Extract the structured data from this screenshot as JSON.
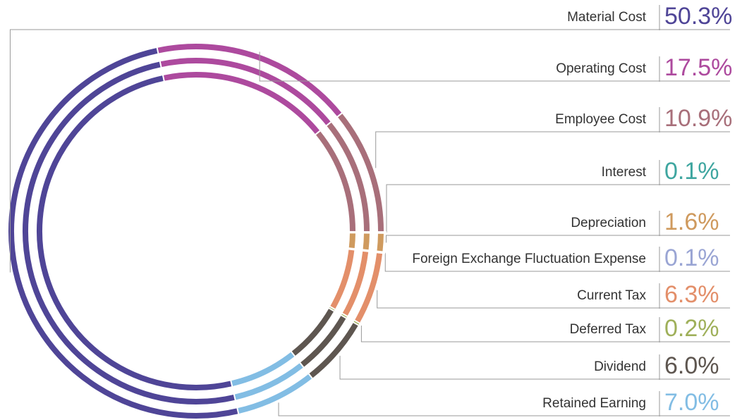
{
  "chart_data": {
    "type": "pie",
    "categories": [
      "Material Cost",
      "Operating Cost",
      "Employee Cost",
      "Interest",
      "Depreciation",
      "Foreign Exchange Fluctuation Expense",
      "Current Tax",
      "Deferred Tax",
      "Dividend",
      "Retained Earning"
    ],
    "values": [
      50.3,
      17.5,
      10.9,
      0.1,
      1.6,
      0.1,
      6.3,
      0.2,
      6.0,
      7.0
    ],
    "value_labels": [
      "50.3%",
      "17.5%",
      "10.9%",
      "0.1%",
      "1.6%",
      "0.1%",
      "6.3%",
      "0.2%",
      "6.0%",
      "7.0%"
    ],
    "colors": [
      "#4f4597",
      "#ad4a9e",
      "#a86f7a",
      "#3fa6a0",
      "#cf9a5e",
      "#9aa5d4",
      "#e38f6a",
      "#9fb05a",
      "#5e5650",
      "#82bde4"
    ]
  }
}
